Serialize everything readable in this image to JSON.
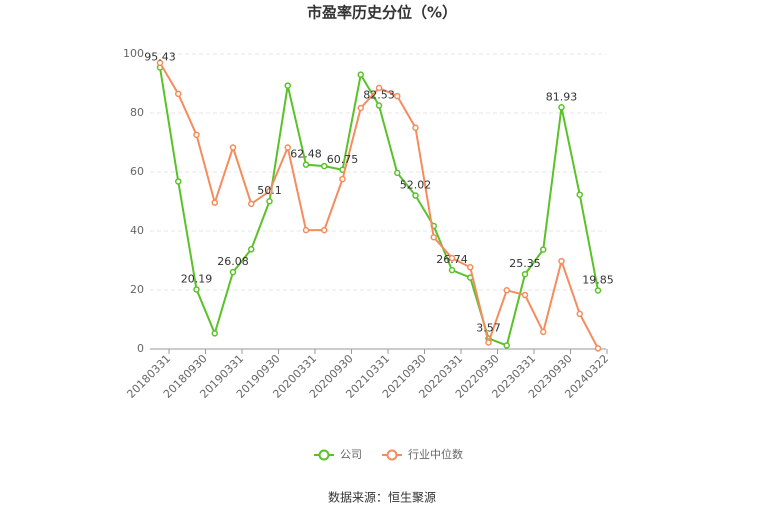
{
  "chart_data": {
    "type": "line",
    "title": "市盈率历史分位（%）",
    "categories": [
      "20180331",
      null,
      "20180930",
      null,
      "20190331",
      null,
      "20190930",
      null,
      "20200331",
      null,
      "20200930",
      null,
      "20210331",
      null,
      "20210930",
      null,
      "20220331",
      null,
      "20220930",
      null,
      "20230331",
      null,
      "20230930",
      null,
      "20240322"
    ],
    "series": [
      {
        "name": "公司",
        "color": "#5ac229",
        "values": [
          95.43,
          56.8,
          20.19,
          5.3,
          26.08,
          33.8,
          50.1,
          89.3,
          62.48,
          62.0,
          60.75,
          93.0,
          82.53,
          59.7,
          52.02,
          41.7,
          26.74,
          24.2,
          3.57,
          1.2,
          25.35,
          33.7,
          81.93,
          52.3,
          19.85
        ]
      },
      {
        "name": "行业中位数",
        "color": "#f58c5e",
        "values": [
          97.0,
          86.5,
          72.6,
          49.6,
          68.3,
          49.2,
          53.5,
          68.3,
          40.3,
          40.3,
          57.6,
          81.7,
          88.5,
          85.7,
          75.0,
          37.9,
          30.8,
          27.7,
          2.2,
          19.9,
          18.3,
          5.8,
          29.8,
          11.9,
          0.2
        ]
      }
    ],
    "ylim": [
      0,
      100
    ],
    "yticks": [
      0,
      20,
      40,
      60,
      80,
      100
    ],
    "grid": true,
    "source": "数据来源：恒生聚源"
  }
}
